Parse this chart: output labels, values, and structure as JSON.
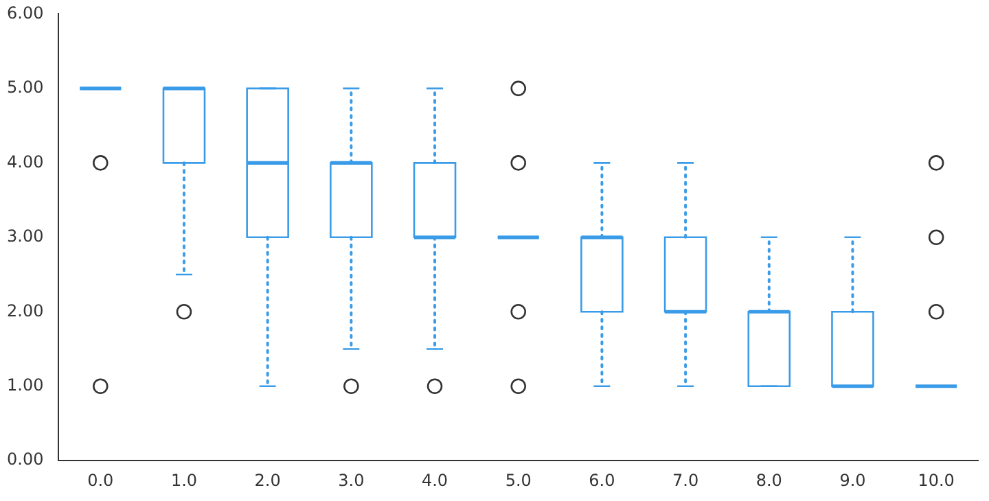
{
  "chart_data": {
    "type": "box",
    "categories": [
      "0.0",
      "1.0",
      "2.0",
      "3.0",
      "4.0",
      "5.0",
      "6.0",
      "7.0",
      "8.0",
      "9.0",
      "10.0"
    ],
    "color": "#3a9ce8",
    "boxes": [
      {
        "low": 5,
        "q1": 5,
        "median": 5,
        "q3": 5,
        "high": 5,
        "outliers": [
          4,
          1
        ]
      },
      {
        "low": 2.5,
        "q1": 4,
        "median": 5,
        "q3": 5,
        "high": 5,
        "outliers": [
          2
        ]
      },
      {
        "low": 1,
        "q1": 3,
        "median": 4,
        "q3": 5,
        "high": 5
      },
      {
        "low": 1.5,
        "q1": 3,
        "median": 4,
        "q3": 4,
        "high": 5,
        "outliers": [
          1
        ]
      },
      {
        "low": 1.5,
        "q1": 3,
        "median": 3,
        "q3": 4,
        "high": 5,
        "outliers": [
          1
        ]
      },
      {
        "low": 3,
        "q1": 3,
        "median": 3,
        "q3": 3,
        "high": 3,
        "outliers": [
          5,
          4,
          2,
          1
        ]
      },
      {
        "low": 1,
        "q1": 2,
        "median": 3,
        "q3": 3,
        "high": 4
      },
      {
        "low": 1,
        "q1": 2,
        "median": 2,
        "q3": 3,
        "high": 4
      },
      {
        "low": 1,
        "q1": 1,
        "median": 2,
        "q3": 2,
        "high": 3
      },
      {
        "low": 1,
        "q1": 1,
        "median": 1,
        "q3": 2,
        "high": 3
      },
      {
        "low": 1,
        "q1": 1,
        "median": 1,
        "q3": 1,
        "high": 1,
        "outliers": [
          4,
          3,
          2
        ]
      }
    ],
    "ylim": [
      0,
      6
    ],
    "yticks": [
      {
        "value": 0,
        "label": "0.00"
      },
      {
        "value": 1,
        "label": "1.00"
      },
      {
        "value": 2,
        "label": "2.00"
      },
      {
        "value": 3,
        "label": "3.00"
      },
      {
        "value": 4,
        "label": "4.00"
      },
      {
        "value": 5,
        "label": "5.00"
      },
      {
        "value": 6,
        "label": "6.00"
      }
    ],
    "grid": false,
    "legend": false
  }
}
